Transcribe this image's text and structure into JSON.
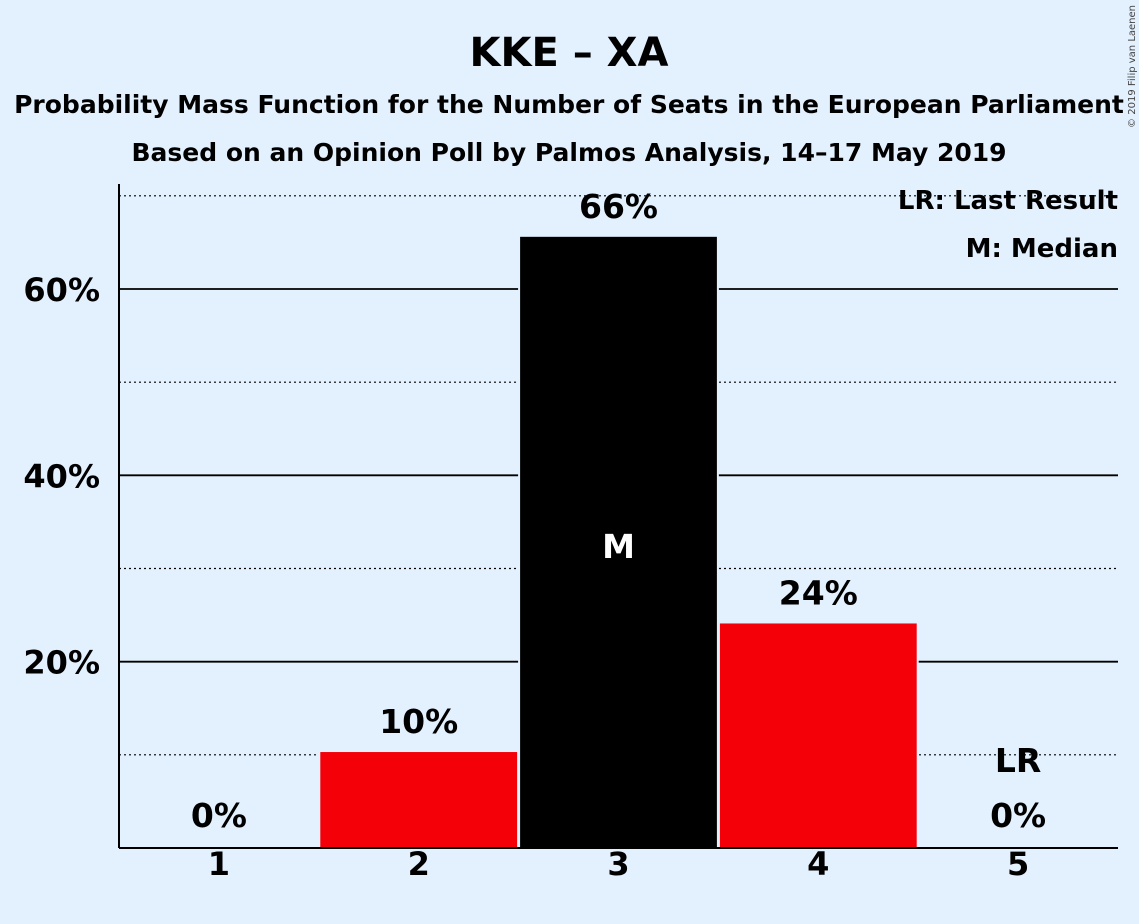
{
  "chart_data": {
    "type": "bar",
    "title": "KKE – XA",
    "subtitle": "Probability Mass Function for the Number of Seats in the European Parliament",
    "subtitle2": "Based on an Opinion Poll by Palmos Analysis, 14–17 May 2019",
    "categories": [
      "1",
      "2",
      "3",
      "4",
      "5"
    ],
    "values": [
      0,
      10.3,
      65.6,
      24.1,
      0
    ],
    "value_labels": [
      "0%",
      "10%",
      "66%",
      "24%",
      "0%"
    ],
    "bar_colors": [
      "#f40009",
      "#f40009",
      "#000000",
      "#f40009",
      "#f40009"
    ],
    "median_index": 2,
    "median_marker": "M",
    "last_result_index": 4,
    "last_result_marker": "LR",
    "y_ticks": [
      "20%",
      "40%",
      "60%"
    ],
    "ylim": [
      0,
      71
    ],
    "legend": [
      "LR: Last Result",
      "M: Median"
    ],
    "legend_position": "top-right",
    "copyright": "© 2019 Filip van Laenen",
    "colors": {
      "background": "#e3f0fe",
      "bar": "#f40009",
      "median_bar": "#000000"
    }
  }
}
